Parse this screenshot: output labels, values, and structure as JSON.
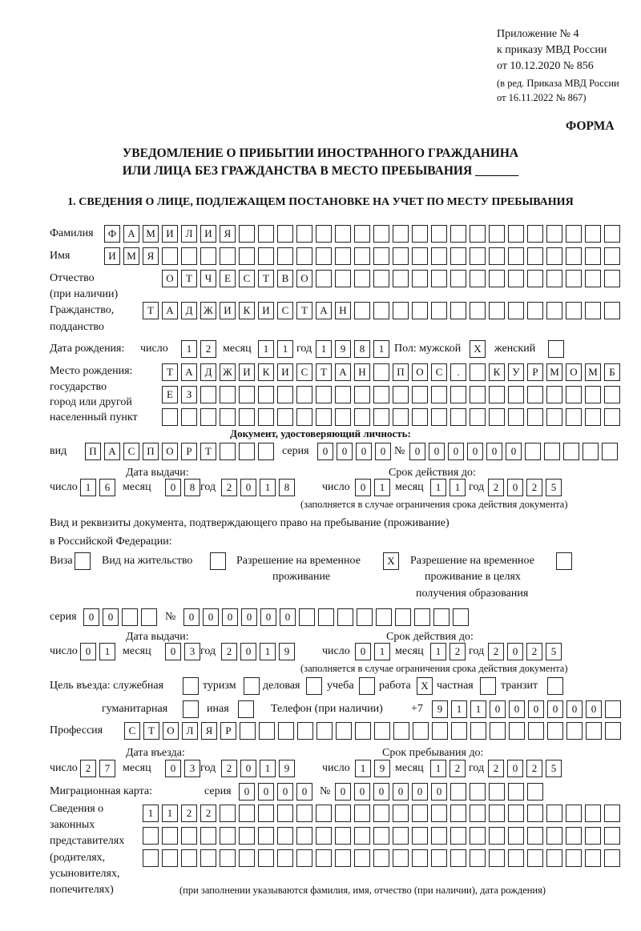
{
  "header": {
    "appendix": "Приложение № 4",
    "order": "к приказу МВД России",
    "order_date": "от 10.12.2020 № 856",
    "revision1": "(в ред. Приказа МВД России",
    "revision2": "от 16.11.2022 № 867)",
    "form_label": "ФОРМА"
  },
  "title": {
    "line1": "УВЕДОМЛЕНИЕ О ПРИБЫТИИ ИНОСТРАННОГО ГРАЖДАНИНА",
    "line2": "ИЛИ ЛИЦА БЕЗ ГРАЖДАНСТВА В МЕСТО ПРЕБЫВАНИЯ _______"
  },
  "section1_heading": "1. СВЕДЕНИЯ О ЛИЦЕ, ПОДЛЕЖАЩЕМ ПОСТАНОВКЕ НА УЧЕТ ПО МЕСТУ ПРЕБЫВАНИЯ",
  "labels": {
    "surname": "Фамилия",
    "name": "Имя",
    "patronymic1": "Отчество",
    "patronymic2": "(при наличии)",
    "citizenship1": "Гражданство,",
    "citizenship2": "подданство",
    "birth_date": "Дата рождения:",
    "day": "число",
    "month": "месяц",
    "year": "год",
    "sex_male": "Пол: мужской",
    "sex_female": "женский",
    "birth_place1": "Место рождения:",
    "birth_place2": "государство",
    "birth_place3": "город или другой",
    "birth_place4": "населенный пункт",
    "id_doc_heading": "Документ, удостоверяющий личность:",
    "doc_kind": "вид",
    "series": "серия",
    "number": "№",
    "issue_date": "Дата выдачи:",
    "valid_until": "Срок действия до:",
    "validity_note": "(заполняется в случае ограничения срока действия документа)",
    "residence_doc1": "Вид и реквизиты документа, подтверждающего право на пребывание (проживание)",
    "residence_doc2": "в Российской Федерации:",
    "visa": "Виза",
    "residence_permit": "Вид на жительство",
    "temp_permit1": "Разрешение на временное",
    "temp_permit2": "проживание",
    "temp_edu1": "Разрешение на временное",
    "temp_edu2": "проживание в целях",
    "temp_edu3": "получения образования",
    "purpose": "Цель въезда: служебная",
    "tourism": "туризм",
    "business": "деловая",
    "study": "учеба",
    "work": "работа",
    "private": "частная",
    "transit": "транзит",
    "humanitarian": "гуманитарная",
    "other": "иная",
    "phone": "Телефон (при наличии)",
    "phone_prefix": "+7",
    "profession": "Профессия",
    "entry_date": "Дата въезда:",
    "stay_until": "Срок пребывания до:",
    "migration_card": "Миграционная карта:",
    "reps1": "Сведения о",
    "reps2": "законных",
    "reps3": "представителях",
    "reps4": "(родителях,",
    "reps5": "усыновителях,",
    "reps6": "попечителях)",
    "reps_note": "(при заполнении указываются фамилия, имя, отчество (при наличии), дата рождения)"
  },
  "values": {
    "surname": "ФАМИЛИЯ",
    "name": "ИМЯ",
    "patronymic": "ОТЧЕСТВО",
    "citizenship": "ТАДЖИКИСТАН",
    "birth": {
      "day": "12",
      "month": "11",
      "year": "1981"
    },
    "sex_male": "X",
    "sex_female": "",
    "birth_place": [
      "ТАДЖИКИСТАН ПОС. КУРМОМБ",
      "ЕЗ",
      ""
    ],
    "id_doc": {
      "kind": "ПАСПОРТ",
      "series": "0000",
      "number": "000000",
      "issue": {
        "day": "16",
        "month": "08",
        "year": "2018"
      },
      "valid": {
        "day": "01",
        "month": "11",
        "year": "2025"
      }
    },
    "residence_doc": {
      "visa": "",
      "residence_permit": "",
      "temp_permit": "X",
      "temp_edu": "",
      "series": "00",
      "number": "000000",
      "issue": {
        "day": "01",
        "month": "03",
        "year": "2019"
      },
      "valid": {
        "day": "01",
        "month": "12",
        "year": "2025"
      }
    },
    "purpose": {
      "service": "",
      "tourism": "",
      "business": "",
      "study": "",
      "work": "X",
      "private": "",
      "transit": "",
      "humanitarian": "",
      "other": ""
    },
    "phone": "911000000",
    "profession": "СТОЛЯР",
    "entry": {
      "day": "27",
      "month": "03",
      "year": "2019"
    },
    "stay": {
      "day": "19",
      "month": "12",
      "year": "2025"
    },
    "migration_card": {
      "series": "0000",
      "number": "000000"
    },
    "reps": [
      "1122",
      "",
      ""
    ]
  }
}
